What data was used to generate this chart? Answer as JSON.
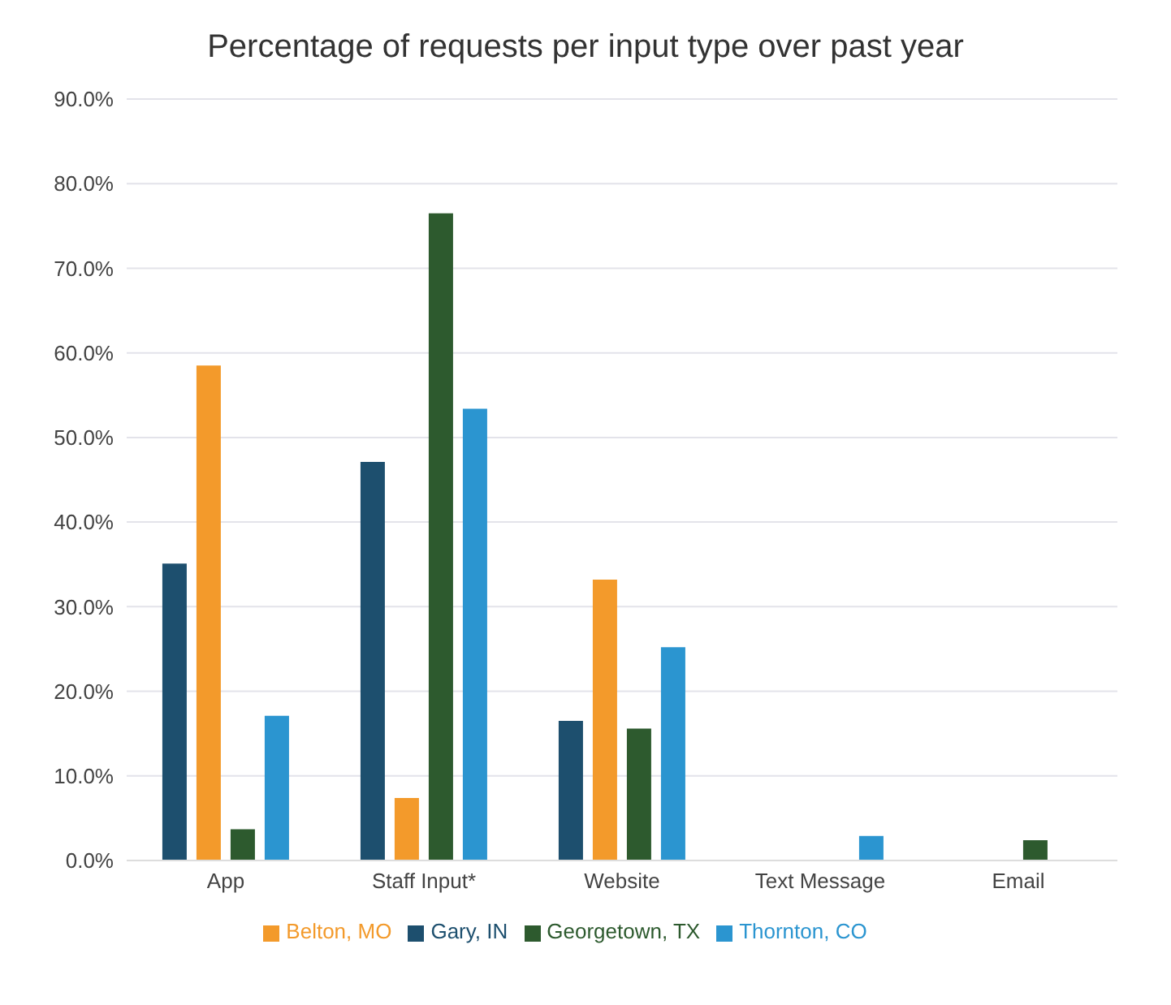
{
  "chart_data": {
    "type": "bar",
    "title": "Percentage of requests per input type over past year",
    "categories": [
      "App",
      "Staff Input*",
      "Website",
      "Text Message",
      "Email"
    ],
    "series": [
      {
        "name": "Gary, IN",
        "color": "#1d4f6e",
        "values": [
          35.1,
          47.1,
          16.5,
          0,
          0
        ]
      },
      {
        "name": "Belton, MO",
        "color": "#f39a2b",
        "values": [
          58.5,
          7.4,
          33.2,
          0,
          0
        ]
      },
      {
        "name": "Georgetown, TX",
        "color": "#2d5a2e",
        "values": [
          3.7,
          76.5,
          15.6,
          0,
          2.4
        ]
      },
      {
        "name": "Thornton, CO",
        "color": "#2b95d0",
        "values": [
          17.1,
          53.4,
          25.2,
          2.9,
          0
        ]
      }
    ],
    "ylim": [
      0,
      90
    ],
    "yticks": [
      {
        "value": 0,
        "label": "0.0%"
      },
      {
        "value": 10,
        "label": "10.0%"
      },
      {
        "value": 20,
        "label": "20.0%"
      },
      {
        "value": 30,
        "label": "30.0%"
      },
      {
        "value": 40,
        "label": "40.0%"
      },
      {
        "value": 50,
        "label": "50.0%"
      },
      {
        "value": 60,
        "label": "60.0%"
      },
      {
        "value": 70,
        "label": "70.0%"
      },
      {
        "value": 80,
        "label": "80.0%"
      },
      {
        "value": 90,
        "label": "90.0%"
      }
    ],
    "grid": "y",
    "legend": "bottom"
  }
}
